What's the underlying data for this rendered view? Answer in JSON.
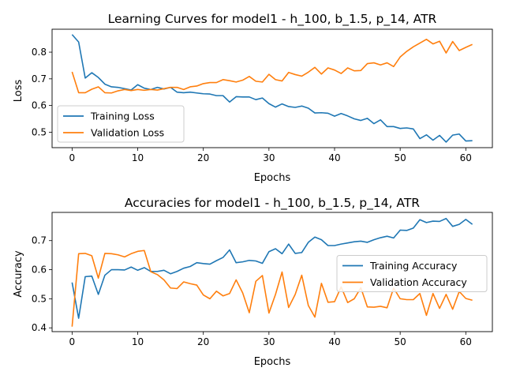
{
  "chart_data": [
    {
      "type": "line",
      "title": "Learning Curves for model1 - h_100, b_1.5, p_14, ATR",
      "xlabel": "Epochs",
      "ylabel": "Loss",
      "xlim": [
        -3.05,
        64.05
      ],
      "ylim": [
        0.442,
        0.886
      ],
      "xticks": [
        0,
        10,
        20,
        30,
        40,
        50,
        60
      ],
      "yticks": [
        0.5,
        0.6,
        0.7,
        0.8
      ],
      "legend_position": "lower-left",
      "x": [
        0,
        1,
        2,
        3,
        4,
        5,
        6,
        7,
        8,
        9,
        10,
        11,
        12,
        13,
        14,
        15,
        16,
        17,
        18,
        19,
        20,
        21,
        22,
        23,
        24,
        25,
        26,
        27,
        28,
        29,
        30,
        31,
        32,
        33,
        34,
        35,
        36,
        37,
        38,
        39,
        40,
        41,
        42,
        43,
        44,
        45,
        46,
        47,
        48,
        49,
        50,
        51,
        52,
        53,
        54,
        55,
        56,
        57,
        58,
        59,
        60,
        61
      ],
      "series": [
        {
          "name": "Training Loss",
          "color": "#1f77b4",
          "values": [
            0.866,
            0.838,
            0.703,
            0.723,
            0.705,
            0.68,
            0.67,
            0.668,
            0.663,
            0.658,
            0.678,
            0.665,
            0.66,
            0.668,
            0.662,
            0.668,
            0.65,
            0.648,
            0.65,
            0.647,
            0.644,
            0.643,
            0.637,
            0.637,
            0.613,
            0.633,
            0.632,
            0.632,
            0.622,
            0.628,
            0.607,
            0.594,
            0.606,
            0.596,
            0.593,
            0.598,
            0.59,
            0.572,
            0.573,
            0.571,
            0.56,
            0.57,
            0.561,
            0.55,
            0.544,
            0.552,
            0.532,
            0.546,
            0.521,
            0.521,
            0.514,
            0.516,
            0.512,
            0.476,
            0.49,
            0.47,
            0.488,
            0.463,
            0.489,
            0.493,
            0.467,
            0.468
          ]
        },
        {
          "name": "Validation Loss",
          "color": "#ff7f0e",
          "values": [
            0.726,
            0.648,
            0.648,
            0.661,
            0.67,
            0.648,
            0.647,
            0.655,
            0.66,
            0.656,
            0.66,
            0.657,
            0.66,
            0.658,
            0.663,
            0.668,
            0.668,
            0.66,
            0.67,
            0.673,
            0.682,
            0.686,
            0.686,
            0.697,
            0.693,
            0.688,
            0.695,
            0.709,
            0.691,
            0.688,
            0.717,
            0.697,
            0.692,
            0.724,
            0.716,
            0.71,
            0.725,
            0.743,
            0.718,
            0.741,
            0.733,
            0.72,
            0.741,
            0.73,
            0.731,
            0.757,
            0.76,
            0.752,
            0.76,
            0.746,
            0.782,
            0.803,
            0.82,
            0.834,
            0.848,
            0.831,
            0.841,
            0.797,
            0.84,
            0.806,
            0.818,
            0.829
          ]
        }
      ]
    },
    {
      "type": "line",
      "title": "Accuracies for model1 - h_100, b_1.5, p_14, ATR",
      "xlabel": "Epochs",
      "ylabel": "Accuracy",
      "xlim": [
        -3.05,
        64.05
      ],
      "ylim": [
        0.387,
        0.797
      ],
      "xticks": [
        0,
        10,
        20,
        30,
        40,
        50,
        60
      ],
      "yticks": [
        0.4,
        0.5,
        0.6,
        0.7
      ],
      "legend_position": "center-right",
      "x": [
        0,
        1,
        2,
        3,
        4,
        5,
        6,
        7,
        8,
        9,
        10,
        11,
        12,
        13,
        14,
        15,
        16,
        17,
        18,
        19,
        20,
        21,
        22,
        23,
        24,
        25,
        26,
        27,
        28,
        29,
        30,
        31,
        32,
        33,
        34,
        35,
        36,
        37,
        38,
        39,
        40,
        41,
        42,
        43,
        44,
        45,
        46,
        47,
        48,
        49,
        50,
        51,
        52,
        53,
        54,
        55,
        56,
        57,
        58,
        59,
        60,
        61
      ],
      "series": [
        {
          "name": "Training Accuracy",
          "color": "#1f77b4",
          "values": [
            0.556,
            0.433,
            0.576,
            0.578,
            0.515,
            0.581,
            0.6,
            0.6,
            0.599,
            0.609,
            0.598,
            0.607,
            0.594,
            0.594,
            0.598,
            0.586,
            0.594,
            0.605,
            0.611,
            0.624,
            0.621,
            0.619,
            0.631,
            0.642,
            0.668,
            0.624,
            0.627,
            0.632,
            0.63,
            0.622,
            0.662,
            0.672,
            0.655,
            0.688,
            0.656,
            0.659,
            0.694,
            0.712,
            0.703,
            0.683,
            0.683,
            0.688,
            0.692,
            0.696,
            0.698,
            0.694,
            0.703,
            0.71,
            0.715,
            0.709,
            0.736,
            0.735,
            0.743,
            0.772,
            0.762,
            0.767,
            0.766,
            0.776,
            0.749,
            0.756,
            0.773,
            0.756
          ]
        },
        {
          "name": "Validation Accuracy",
          "color": "#ff7f0e",
          "values": [
            0.404,
            0.655,
            0.656,
            0.648,
            0.571,
            0.656,
            0.655,
            0.651,
            0.644,
            0.655,
            0.663,
            0.666,
            0.593,
            0.583,
            0.565,
            0.537,
            0.535,
            0.558,
            0.552,
            0.547,
            0.513,
            0.5,
            0.526,
            0.51,
            0.518,
            0.565,
            0.52,
            0.452,
            0.56,
            0.58,
            0.451,
            0.515,
            0.592,
            0.47,
            0.515,
            0.581,
            0.477,
            0.437,
            0.553,
            0.488,
            0.49,
            0.541,
            0.487,
            0.5,
            0.538,
            0.472,
            0.471,
            0.474,
            0.469,
            0.537,
            0.5,
            0.497,
            0.497,
            0.518,
            0.443,
            0.518,
            0.467,
            0.515,
            0.464,
            0.525,
            0.501,
            0.495
          ]
        }
      ]
    }
  ]
}
